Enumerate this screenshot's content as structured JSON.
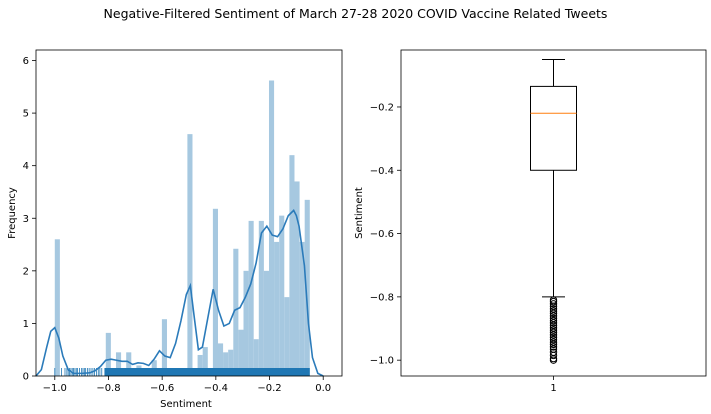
{
  "figure": {
    "title": "Negative-Filtered Sentiment of March 27-28 2020 COVID Vaccine Related Tweets"
  },
  "colors": {
    "hist_fill": "#a6c8e0",
    "kde_line": "#2b7bba",
    "rug": "#1f77b4",
    "median_line": "#ff7f0e",
    "box_edge": "#000000"
  },
  "chart_data": [
    {
      "type": "histogram",
      "xlabel": "Sentiment",
      "ylabel": "Frequency",
      "xlim": [
        -1.07,
        0.07
      ],
      "ylim": [
        0,
        6.2
      ],
      "xticks": [
        -1.0,
        -0.8,
        -0.6,
        -0.4,
        -0.2,
        0.0
      ],
      "xtick_labels": [
        "−1.0",
        "−0.8",
        "−0.6",
        "−0.4",
        "−0.2",
        "0.0"
      ],
      "yticks": [
        0,
        1,
        2,
        3,
        4,
        5,
        6
      ],
      "ytick_labels": [
        "0",
        "1",
        "2",
        "3",
        "4",
        "5",
        "6"
      ],
      "bin_width": 0.01899,
      "bins": [
        {
          "x0": -1.0,
          "value": 2.6
        },
        {
          "x0": -0.81,
          "value": 0.82
        },
        {
          "x0": -0.772,
          "value": 0.45
        },
        {
          "x0": -0.734,
          "value": 0.45
        },
        {
          "x0": -0.696,
          "value": 0.2
        },
        {
          "x0": -0.658,
          "value": 0.15
        },
        {
          "x0": -0.639,
          "value": 0.3
        },
        {
          "x0": -0.601,
          "value": 1.08
        },
        {
          "x0": -0.506,
          "value": 4.6
        },
        {
          "x0": -0.468,
          "value": 0.4
        },
        {
          "x0": -0.449,
          "value": 0.55
        },
        {
          "x0": -0.411,
          "value": 3.18
        },
        {
          "x0": -0.392,
          "value": 0.62
        },
        {
          "x0": -0.373,
          "value": 0.45
        },
        {
          "x0": -0.354,
          "value": 0.5
        },
        {
          "x0": -0.335,
          "value": 2.42
        },
        {
          "x0": -0.316,
          "value": 0.88
        },
        {
          "x0": -0.297,
          "value": 2.0
        },
        {
          "x0": -0.278,
          "value": 2.95
        },
        {
          "x0": -0.259,
          "value": 0.7
        },
        {
          "x0": -0.24,
          "value": 2.95
        },
        {
          "x0": -0.221,
          "value": 2.0
        },
        {
          "x0": -0.202,
          "value": 5.62
        },
        {
          "x0": -0.183,
          "value": 2.55
        },
        {
          "x0": -0.164,
          "value": 3.05
        },
        {
          "x0": -0.145,
          "value": 1.5
        },
        {
          "x0": -0.126,
          "value": 4.2
        },
        {
          "x0": -0.107,
          "value": 3.7
        },
        {
          "x0": -0.088,
          "value": 2.55
        },
        {
          "x0": -0.069,
          "value": 3.35
        }
      ],
      "kde": {
        "x": [
          -1.07,
          -1.05,
          -1.03,
          -1.015,
          -1.0,
          -0.985,
          -0.97,
          -0.95,
          -0.93,
          -0.9,
          -0.87,
          -0.85,
          -0.83,
          -0.81,
          -0.79,
          -0.77,
          -0.75,
          -0.73,
          -0.71,
          -0.69,
          -0.67,
          -0.65,
          -0.63,
          -0.61,
          -0.59,
          -0.57,
          -0.55,
          -0.53,
          -0.51,
          -0.495,
          -0.48,
          -0.465,
          -0.45,
          -0.43,
          -0.41,
          -0.39,
          -0.37,
          -0.35,
          -0.33,
          -0.31,
          -0.29,
          -0.27,
          -0.25,
          -0.23,
          -0.21,
          -0.19,
          -0.17,
          -0.15,
          -0.13,
          -0.11,
          -0.1,
          -0.09,
          -0.07,
          -0.055,
          -0.04,
          -0.02,
          0.0
        ],
        "y": [
          0.0,
          0.12,
          0.55,
          0.85,
          0.92,
          0.72,
          0.38,
          0.12,
          0.05,
          0.05,
          0.06,
          0.1,
          0.18,
          0.3,
          0.32,
          0.3,
          0.28,
          0.28,
          0.22,
          0.25,
          0.24,
          0.2,
          0.32,
          0.48,
          0.38,
          0.35,
          0.62,
          1.05,
          1.55,
          1.72,
          1.1,
          0.5,
          0.55,
          1.1,
          1.65,
          1.25,
          0.95,
          1.0,
          1.25,
          1.3,
          1.5,
          1.75,
          2.15,
          2.72,
          2.85,
          2.68,
          2.65,
          2.8,
          3.05,
          3.15,
          3.05,
          2.85,
          2.1,
          1.0,
          0.35,
          0.05,
          0.0
        ]
      },
      "rug": {
        "sparse_points": [
          -0.975,
          -0.962,
          -0.955,
          -0.95,
          -0.945,
          -0.94,
          -0.935,
          -0.93,
          -0.925,
          -0.92,
          -0.915,
          -0.908,
          -0.9,
          -0.895,
          -0.89,
          -0.885,
          -0.878,
          -0.872,
          -0.865,
          -0.858,
          -0.852,
          -0.845,
          -0.838,
          -0.832,
          -0.825
        ],
        "dense_range": [
          -0.815,
          -0.05
        ],
        "extra_points": [
          -1.0
        ]
      }
    },
    {
      "type": "box",
      "ylabel": "Sentiment",
      "ylim": [
        -1.05,
        -0.02
      ],
      "xticks": [
        1
      ],
      "xtick_labels": [
        "1"
      ],
      "yticks": [
        -1.0,
        -0.8,
        -0.6,
        -0.4,
        -0.2
      ],
      "ytick_labels": [
        "−1.0",
        "−0.8",
        "−0.6",
        "−0.4",
        "−0.2"
      ],
      "box": {
        "whisker_low": -0.8,
        "q1": -0.4,
        "median": -0.22,
        "q3": -0.135,
        "whisker_high": -0.05
      },
      "outliers": [
        -0.81,
        -0.815,
        -0.822,
        -0.83,
        -0.838,
        -0.845,
        -0.852,
        -0.86,
        -0.868,
        -0.875,
        -0.882,
        -0.89,
        -0.898,
        -0.905,
        -0.912,
        -0.92,
        -0.928,
        -0.935,
        -0.943,
        -0.95,
        -0.958,
        -0.965,
        -0.975,
        -0.985,
        -0.995,
        -1.0
      ]
    }
  ]
}
